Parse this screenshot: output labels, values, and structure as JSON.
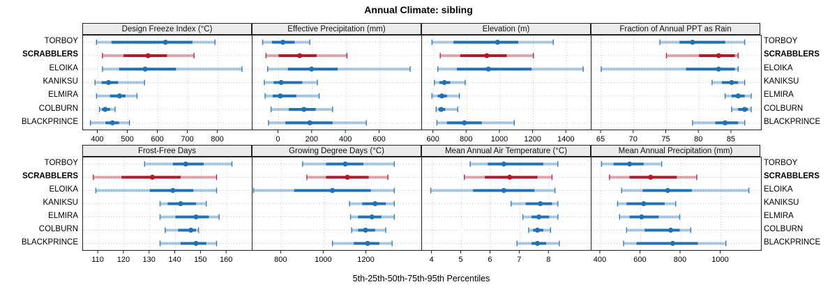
{
  "title": "Annual Climate: sibling",
  "xlabel": "5th-25th-50th-75th-95th Percentiles",
  "sites": [
    "TORBOY",
    "SCRABBLERS",
    "ELOIKA",
    "KANIKSU",
    "ELMIRA",
    "COLBURN",
    "BLACKPRINCE"
  ],
  "highlight_site": "SCRABBLERS",
  "colors": {
    "series": "#2171b5",
    "highlight": "#b2182b",
    "strip_bg": "#ececec",
    "grid": "#cccccc"
  },
  "percentile_labels": [
    "5th",
    "25th",
    "50th",
    "75th",
    "95th"
  ],
  "chart_data": [
    {
      "type": "scatter",
      "title": "Design Freeze Index (°C)",
      "xlim": [
        350,
        915
      ],
      "xticks": [
        400,
        500,
        600,
        700,
        800
      ],
      "series": [
        {
          "name": "TORBOY",
          "values": [
            395,
            445,
            625,
            715,
            790
          ]
        },
        {
          "name": "SCRABBLERS",
          "values": [
            415,
            485,
            567,
            630,
            720
          ]
        },
        {
          "name": "ELOIKA",
          "values": [
            415,
            470,
            557,
            660,
            880
          ]
        },
        {
          "name": "KANIKSU",
          "values": [
            390,
            412,
            435,
            467,
            555
          ]
        },
        {
          "name": "ELMIRA",
          "values": [
            395,
            440,
            472,
            492,
            530
          ]
        },
        {
          "name": "COLBURN",
          "values": [
            405,
            413,
            424,
            440,
            457
          ]
        },
        {
          "name": "BLACKPRINCE",
          "values": [
            375,
            425,
            448,
            470,
            505
          ]
        }
      ]
    },
    {
      "type": "scatter",
      "title": "Effective Precipitation (mm)",
      "xlim": [
        -155,
        850
      ],
      "xticks": [
        0,
        200,
        400,
        600
      ],
      "series": [
        {
          "name": "TORBOY",
          "values": [
            -95,
            -40,
            25,
            95,
            185
          ]
        },
        {
          "name": "SCRABBLERS",
          "values": [
            -75,
            0,
            125,
            225,
            405
          ]
        },
        {
          "name": "ELOIKA",
          "values": [
            -65,
            55,
            195,
            350,
            780
          ]
        },
        {
          "name": "KANIKSU",
          "values": [
            -85,
            -30,
            15,
            140,
            230
          ]
        },
        {
          "name": "ELMIRA",
          "values": [
            -80,
            -35,
            10,
            105,
            240
          ]
        },
        {
          "name": "COLBURN",
          "values": [
            -45,
            60,
            150,
            220,
            320
          ]
        },
        {
          "name": "BLACKPRINCE",
          "values": [
            -60,
            40,
            185,
            320,
            520
          ]
        }
      ]
    },
    {
      "type": "scatter",
      "title": "Elevation (m)",
      "xlim": [
        530,
        1550
      ],
      "xticks": [
        600,
        800,
        1000,
        1200,
        1400
      ],
      "series": [
        {
          "name": "TORBOY",
          "values": [
            590,
            720,
            985,
            1110,
            1320
          ]
        },
        {
          "name": "SCRABBLERS",
          "values": [
            640,
            760,
            920,
            1040,
            1200
          ]
        },
        {
          "name": "ELOIKA",
          "values": [
            625,
            740,
            930,
            1190,
            1500
          ]
        },
        {
          "name": "KANIKSU",
          "values": [
            605,
            635,
            665,
            700,
            790
          ]
        },
        {
          "name": "ELMIRA",
          "values": [
            590,
            625,
            650,
            680,
            755
          ]
        },
        {
          "name": "COLBURN",
          "values": [
            615,
            630,
            645,
            670,
            745
          ]
        },
        {
          "name": "BLACKPRINCE",
          "values": [
            620,
            680,
            785,
            890,
            1085
          ]
        }
      ]
    },
    {
      "type": "scatter",
      "title": "Fraction of Annual PPT as Rain",
      "xlim": [
        63.5,
        89.5
      ],
      "xticks": [
        65,
        70,
        75,
        80,
        85
      ],
      "series": [
        {
          "name": "TORBOY",
          "values": [
            74,
            77,
            79,
            84,
            87
          ]
        },
        {
          "name": "SCRABBLERS",
          "values": [
            75,
            80,
            83,
            85.5,
            86
          ]
        },
        {
          "name": "ELOIKA",
          "values": [
            65,
            78,
            83,
            85.5,
            86
          ]
        },
        {
          "name": "KANIKSU",
          "values": [
            82,
            83.5,
            85,
            86,
            87
          ]
        },
        {
          "name": "ELMIRA",
          "values": [
            84,
            85,
            86,
            87,
            88
          ]
        },
        {
          "name": "COLBURN",
          "values": [
            85,
            86,
            87,
            87.5,
            88
          ]
        },
        {
          "name": "BLACKPRINCE",
          "values": [
            79,
            82.5,
            84,
            86,
            87
          ]
        }
      ]
    },
    {
      "type": "scatter",
      "title": "Frost-Free Days",
      "xlim": [
        104,
        170
      ],
      "xticks": [
        110,
        120,
        130,
        140,
        150,
        160
      ],
      "series": [
        {
          "name": "TORBOY",
          "values": [
            128,
            139,
            144,
            151,
            162
          ]
        },
        {
          "name": "SCRABBLERS",
          "values": [
            108,
            119,
            131,
            142,
            156
          ]
        },
        {
          "name": "ELOIKA",
          "values": [
            109,
            130,
            139,
            147,
            156
          ]
        },
        {
          "name": "KANIKSU",
          "values": [
            134,
            137,
            142,
            148,
            152
          ]
        },
        {
          "name": "ELMIRA",
          "values": [
            134,
            140,
            148,
            153,
            157
          ]
        },
        {
          "name": "COLBURN",
          "values": [
            136,
            141,
            146,
            148,
            149
          ]
        },
        {
          "name": "BLACKPRINCE",
          "values": [
            134,
            142,
            148,
            152,
            156
          ]
        }
      ]
    },
    {
      "type": "scatter",
      "title": "Growing Degree Days (°C)",
      "xlim": [
        665,
        1460
      ],
      "xticks": [
        800,
        1000,
        1200
      ],
      "series": [
        {
          "name": "TORBOY",
          "values": [
            900,
            1010,
            1100,
            1185,
            1330
          ]
        },
        {
          "name": "SCRABBLERS",
          "values": [
            920,
            1010,
            1110,
            1210,
            1300
          ]
        },
        {
          "name": "ELOIKA",
          "values": [
            670,
            860,
            1040,
            1220,
            1330
          ]
        },
        {
          "name": "KANIKSU",
          "values": [
            1120,
            1180,
            1240,
            1290,
            1330
          ]
        },
        {
          "name": "ELMIRA",
          "values": [
            1125,
            1160,
            1225,
            1270,
            1330
          ]
        },
        {
          "name": "COLBURN",
          "values": [
            1130,
            1160,
            1195,
            1240,
            1290
          ]
        },
        {
          "name": "BLACKPRINCE",
          "values": [
            1040,
            1140,
            1205,
            1260,
            1320
          ]
        }
      ]
    },
    {
      "type": "scatter",
      "title": "Mean Annual Air Temperature (°C)",
      "xlim": [
        3.65,
        9.45
      ],
      "xticks": [
        4,
        5,
        6,
        7,
        8
      ],
      "series": [
        {
          "name": "TORBOY",
          "values": [
            5.3,
            5.9,
            6.45,
            7.8,
            8.3
          ]
        },
        {
          "name": "SCRABBLERS",
          "values": [
            5.1,
            5.8,
            6.65,
            7.6,
            8.1
          ]
        },
        {
          "name": "ELOIKA",
          "values": [
            3.95,
            5.4,
            6.45,
            7.5,
            8.2
          ]
        },
        {
          "name": "KANIKSU",
          "values": [
            6.7,
            7.2,
            7.7,
            8.1,
            8.3
          ]
        },
        {
          "name": "ELMIRA",
          "values": [
            7.1,
            7.4,
            7.65,
            8.0,
            8.3
          ]
        },
        {
          "name": "COLBURN",
          "values": [
            7.3,
            7.45,
            7.6,
            7.8,
            8.05
          ]
        },
        {
          "name": "BLACKPRINCE",
          "values": [
            6.9,
            7.4,
            7.6,
            7.9,
            8.35
          ]
        }
      ]
    },
    {
      "type": "scatter",
      "title": "Mean Annual Precipitation (mm)",
      "xlim": [
        355,
        1200
      ],
      "xticks": [
        400,
        600,
        800,
        1000
      ],
      "series": [
        {
          "name": "TORBOY",
          "values": [
            405,
            465,
            545,
            615,
            705
          ]
        },
        {
          "name": "SCRABBLERS",
          "values": [
            445,
            545,
            650,
            780,
            880
          ]
        },
        {
          "name": "ELOIKA",
          "values": [
            505,
            610,
            735,
            855,
            1140
          ]
        },
        {
          "name": "KANIKSU",
          "values": [
            485,
            530,
            615,
            720,
            775
          ]
        },
        {
          "name": "ELMIRA",
          "values": [
            495,
            545,
            605,
            690,
            795
          ]
        },
        {
          "name": "COLBURN",
          "values": [
            530,
            620,
            750,
            795,
            850
          ]
        },
        {
          "name": "BLACKPRINCE",
          "values": [
            515,
            580,
            760,
            885,
            1025
          ]
        }
      ]
    }
  ]
}
